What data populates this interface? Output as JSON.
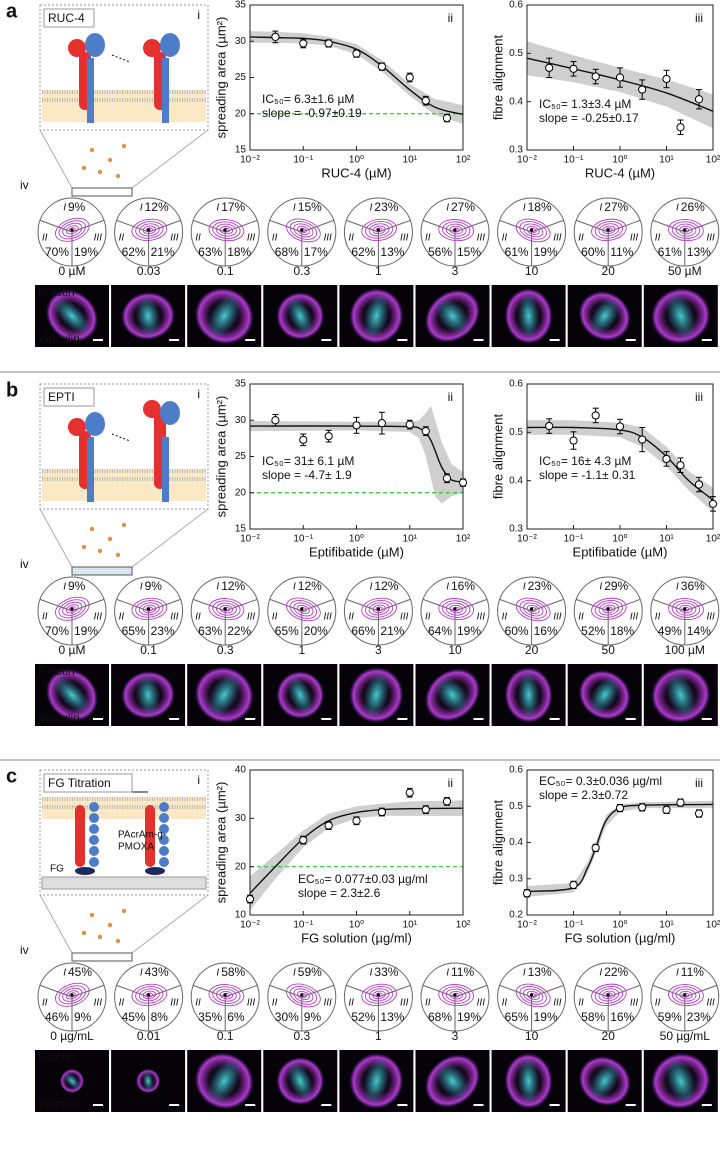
{
  "sector_labels": [
    "I",
    "II",
    "III"
  ],
  "panels": [
    {
      "letter": "a",
      "schematic": {
        "title": "RUC-4",
        "title_color": "#6cbf2a",
        "roman": "i"
      },
      "roses_label": "iv",
      "conditions": [
        "0 µM",
        "0.03",
        "0.1",
        "0.3",
        "1",
        "3",
        "10",
        "20",
        "50 µM"
      ],
      "roses": [
        [
          "9%",
          "70%",
          "19%"
        ],
        [
          "12%",
          "62%",
          "21%"
        ],
        [
          "17%",
          "63%",
          "18%"
        ],
        [
          "15%",
          "68%",
          "17%"
        ],
        [
          "23%",
          "62%",
          "13%"
        ],
        [
          "27%",
          "56%",
          "15%"
        ],
        [
          "18%",
          "61%",
          "19%"
        ],
        [
          "27%",
          "60%",
          "11%"
        ],
        [
          "26%",
          "61%",
          "13%"
        ]
      ],
      "image_labels": [
        "F-actin",
        "Vinculin"
      ]
    },
    {
      "letter": "b",
      "schematic": {
        "title": "EPTI",
        "title_color": "#a8461f",
        "roman": "i"
      },
      "roses_label": "iv",
      "conditions": [
        "0 µM",
        "0.1",
        "0.3",
        "1",
        "3",
        "10",
        "20",
        "50",
        "100 µM"
      ],
      "roses": [
        [
          "9%",
          "70%",
          "19%"
        ],
        [
          "9%",
          "65%",
          "23%"
        ],
        [
          "12%",
          "63%",
          "22%"
        ],
        [
          "12%",
          "65%",
          "20%"
        ],
        [
          "12%",
          "66%",
          "21%"
        ],
        [
          "16%",
          "64%",
          "19%"
        ],
        [
          "23%",
          "60%",
          "16%"
        ],
        [
          "29%",
          "52%",
          "18%"
        ],
        [
          "36%",
          "49%",
          "14%"
        ]
      ],
      "image_labels": [
        "F-actin",
        "Vinculin"
      ]
    },
    {
      "letter": "c",
      "schematic": {
        "title": "FG Titration",
        "title_color": "#22338a",
        "roman": "i",
        "texts": [
          "d",
          "PAcrAm-g-",
          "PMOXA",
          "FG"
        ]
      },
      "roses_label": "iv",
      "conditions": [
        "0 µg/mL",
        "0.01",
        "0.1",
        "0.3",
        "1",
        "3",
        "10",
        "20",
        "50 µg/mL"
      ],
      "roses": [
        [
          "45%",
          "46%",
          "9%"
        ],
        [
          "43%",
          "45%",
          "8%"
        ],
        [
          "58%",
          "35%",
          "6%"
        ],
        [
          "59%",
          "30%",
          "9%"
        ],
        [
          "33%",
          "52%",
          "13%"
        ],
        [
          "11%",
          "68%",
          "19%"
        ],
        [
          "13%",
          "65%",
          "19%"
        ],
        [
          "22%",
          "58%",
          "16%"
        ],
        [
          "11%",
          "59%",
          "23%"
        ]
      ],
      "image_labels": [
        "F-actin",
        "Vinculin"
      ]
    }
  ],
  "chart_data": [
    {
      "type": "scatter",
      "panel_label": "ii",
      "xlabel": "RUC-4 (µM)",
      "ylabel": "spreading area (µm²)",
      "xscale": "log",
      "xlim": [
        0.01,
        100
      ],
      "xticks": [
        {
          "value": 0.01,
          "label": "10⁻²"
        },
        {
          "value": 0.1,
          "label": "10⁻¹"
        },
        {
          "value": 1,
          "label": "10⁰"
        },
        {
          "value": 10,
          "label": "10¹"
        },
        {
          "value": 100,
          "label": "10²"
        }
      ],
      "ylim": [
        15,
        35
      ],
      "yticks": [
        15,
        20,
        25,
        30,
        35
      ],
      "color": "#000000",
      "x": [
        0.03,
        0.1,
        0.3,
        1,
        3,
        10,
        20,
        50
      ],
      "values": [
        30.6,
        29.7,
        29.7,
        28.3,
        26.5,
        25.0,
        21.8,
        19.4
      ],
      "errors": [
        0.8,
        0.6,
        0.5,
        0.5,
        0.5,
        0.6,
        0.6,
        0.5
      ],
      "fit": {
        "x": [
          0.01,
          0.03,
          0.1,
          0.3,
          1,
          3,
          10,
          30,
          100
        ],
        "y": [
          30.6,
          30.5,
          30.4,
          30.0,
          28.9,
          26.6,
          23.3,
          20.9,
          19.9
        ],
        "lower": [
          29.8,
          29.8,
          29.7,
          29.4,
          28.2,
          25.8,
          22.5,
          19.8,
          18.6
        ],
        "upper": [
          31.4,
          31.3,
          31.1,
          30.6,
          29.6,
          27.4,
          24.1,
          22.0,
          21.2
        ]
      },
      "hline": 20,
      "hline_color": "#2fc42f",
      "annotations": [
        "IC₅₀= 6.3±1.6 µM",
        "slope = -0.97±0.19"
      ]
    },
    {
      "type": "scatter",
      "panel_label": "iii",
      "xlabel": "RUC-4 (µM)",
      "ylabel": "fibre alignment",
      "xscale": "log",
      "xlim": [
        0.01,
        100
      ],
      "xticks": [
        {
          "value": 0.01,
          "label": "10⁻²"
        },
        {
          "value": 0.1,
          "label": "10⁻¹"
        },
        {
          "value": 1,
          "label": "10⁰"
        },
        {
          "value": 10,
          "label": "10¹"
        },
        {
          "value": 100,
          "label": "10²"
        }
      ],
      "ylim": [
        0.3,
        0.6
      ],
      "yticks": [
        0.3,
        0.4,
        0.5,
        0.6
      ],
      "color": "#000000",
      "x": [
        0.03,
        0.1,
        0.3,
        1,
        3,
        10,
        20,
        50
      ],
      "values": [
        0.47,
        0.468,
        0.452,
        0.45,
        0.425,
        0.447,
        0.347,
        0.405
      ],
      "errors": [
        0.02,
        0.015,
        0.015,
        0.02,
        0.02,
        0.018,
        0.015,
        0.02
      ],
      "fit": {
        "x": [
          0.01,
          0.1,
          1,
          10,
          100
        ],
        "y": [
          0.49,
          0.468,
          0.445,
          0.418,
          0.38
        ],
        "lower": [
          0.455,
          0.44,
          0.42,
          0.39,
          0.345
        ],
        "upper": [
          0.525,
          0.496,
          0.47,
          0.446,
          0.415
        ]
      },
      "annotations": [
        "IC₅₀= 1.3±3.4 µM",
        "slope = -0.25±0.17"
      ]
    },
    {
      "type": "scatter",
      "panel_label": "ii",
      "xlabel": "Eptifibatide (µM)",
      "ylabel": "spreading area (µm²)",
      "xscale": "log",
      "xlim": [
        0.01,
        100
      ],
      "xticks": [
        {
          "value": 0.01,
          "label": "10⁻²"
        },
        {
          "value": 0.1,
          "label": "10⁻¹"
        },
        {
          "value": 1,
          "label": "10⁰"
        },
        {
          "value": 10,
          "label": "10¹"
        },
        {
          "value": 100,
          "label": "10²"
        }
      ],
      "ylim": [
        15,
        35
      ],
      "yticks": [
        15,
        20,
        25,
        30,
        35
      ],
      "color": "#000000",
      "x": [
        0.03,
        0.1,
        0.3,
        1,
        3,
        10,
        20,
        50,
        100
      ],
      "values": [
        30.0,
        27.3,
        27.8,
        29.3,
        29.6,
        29.4,
        28.5,
        22.0,
        21.4
      ],
      "errors": [
        0.8,
        0.8,
        0.8,
        1.1,
        1.5,
        0.6,
        0.6,
        0.6,
        0.5
      ],
      "fit": {
        "x": [
          0.01,
          1,
          10,
          15,
          20,
          25,
          30,
          40,
          60,
          100
        ],
        "y": [
          29.2,
          29.2,
          29.1,
          28.9,
          28.3,
          27.2,
          25.8,
          23.5,
          21.8,
          21.5
        ],
        "lower": [
          28.5,
          28.6,
          28.4,
          27.5,
          25.0,
          22.0,
          19.5,
          18.5,
          19.5,
          20.0
        ],
        "upper": [
          29.9,
          29.8,
          29.8,
          30.0,
          31.0,
          32.0,
          30.0,
          27.0,
          24.0,
          22.8
        ]
      },
      "hline": 20,
      "hline_color": "#2fc42f",
      "annotations": [
        "IC₅₀= 31± 6.1 µM",
        "slope = -4.7± 1.9"
      ]
    },
    {
      "type": "scatter",
      "panel_label": "iii",
      "xlabel": "Eptifibatide (µM)",
      "ylabel": "fibre alignment",
      "xscale": "log",
      "xlim": [
        0.01,
        100
      ],
      "xticks": [
        {
          "value": 0.01,
          "label": "10⁻²"
        },
        {
          "value": 0.1,
          "label": "10⁻¹"
        },
        {
          "value": 1,
          "label": "10⁰"
        },
        {
          "value": 10,
          "label": "10¹"
        },
        {
          "value": 100,
          "label": "10²"
        }
      ],
      "ylim": [
        0.3,
        0.6
      ],
      "yticks": [
        0.3,
        0.4,
        0.5,
        0.6
      ],
      "color": "#000000",
      "x": [
        0.03,
        0.1,
        0.3,
        1,
        3,
        10,
        20,
        50,
        100
      ],
      "values": [
        0.513,
        0.483,
        0.535,
        0.512,
        0.485,
        0.445,
        0.432,
        0.392,
        0.352
      ],
      "errors": [
        0.015,
        0.018,
        0.015,
        0.015,
        0.025,
        0.015,
        0.015,
        0.015,
        0.015
      ],
      "fit": {
        "x": [
          0.01,
          0.1,
          1,
          3,
          10,
          30,
          100
        ],
        "y": [
          0.51,
          0.51,
          0.505,
          0.49,
          0.45,
          0.4,
          0.36
        ],
        "lower": [
          0.495,
          0.495,
          0.49,
          0.47,
          0.43,
          0.38,
          0.335
        ],
        "upper": [
          0.525,
          0.525,
          0.52,
          0.51,
          0.47,
          0.42,
          0.385
        ]
      },
      "annotations": [
        "IC₅₀= 16± 4.3 µM",
        "slope = -1.1± 0.31"
      ]
    },
    {
      "type": "scatter",
      "panel_label": "ii",
      "xlabel": "FG solution (µg/ml)",
      "ylabel": "spreading area (µm²)",
      "xscale": "log",
      "xlim": [
        0.01,
        100
      ],
      "xticks": [
        {
          "value": 0.01,
          "label": "10⁻²"
        },
        {
          "value": 0.1,
          "label": "10⁻¹"
        },
        {
          "value": 1,
          "label": "10⁰"
        },
        {
          "value": 10,
          "label": "10¹"
        },
        {
          "value": 100,
          "label": "10²"
        }
      ],
      "ylim": [
        10,
        40
      ],
      "yticks": [
        10,
        20,
        30,
        40
      ],
      "color": "#000000",
      "x": [
        0.01,
        0.1,
        0.3,
        1,
        3,
        10,
        20,
        50
      ],
      "values": [
        13.3,
        25.5,
        28.5,
        29.5,
        31.3,
        35.3,
        31.8,
        33.5
      ],
      "errors": [
        0.8,
        0.8,
        0.8,
        0.8,
        0.8,
        0.9,
        0.8,
        0.8
      ],
      "fit": {
        "x": [
          0.01,
          0.03,
          0.1,
          0.3,
          1,
          3,
          10,
          100
        ],
        "y": [
          14.5,
          20.0,
          25.8,
          29.5,
          31.2,
          31.8,
          32.0,
          32.1
        ],
        "lower": [
          11.0,
          17.5,
          24.0,
          28.0,
          30.0,
          30.5,
          30.5,
          30.5
        ],
        "upper": [
          18.0,
          22.5,
          27.5,
          31.0,
          32.5,
          33.0,
          33.5,
          33.7
        ]
      },
      "hline": 20,
      "hline_color": "#2fc42f",
      "annotations": [
        "EC₅₀= 0.077±0.03 µg/ml",
        "slope = 2.3±2.6"
      ]
    },
    {
      "type": "scatter",
      "panel_label": "iii",
      "xlabel": "FG solution (µg/ml)",
      "ylabel": "fibre alignment",
      "xscale": "log",
      "xlim": [
        0.01,
        100
      ],
      "xticks": [
        {
          "value": 0.01,
          "label": "10⁻²"
        },
        {
          "value": 0.1,
          "label": "10⁻¹"
        },
        {
          "value": 1,
          "label": "10⁰"
        },
        {
          "value": 10,
          "label": "10¹"
        },
        {
          "value": 100,
          "label": "10²"
        }
      ],
      "ylim": [
        0.2,
        0.6
      ],
      "yticks": [
        0.2,
        0.3,
        0.4,
        0.5,
        0.6
      ],
      "color": "#000000",
      "x": [
        0.01,
        0.1,
        0.3,
        1,
        3,
        10,
        20,
        50
      ],
      "values": [
        0.26,
        0.283,
        0.385,
        0.495,
        0.497,
        0.49,
        0.51,
        0.48
      ],
      "errors": [
        0.01,
        0.01,
        0.01,
        0.01,
        0.01,
        0.01,
        0.01,
        0.01
      ],
      "fit": {
        "x": [
          0.01,
          0.1,
          0.2,
          0.3,
          0.5,
          1,
          3,
          100
        ],
        "y": [
          0.265,
          0.275,
          0.33,
          0.385,
          0.46,
          0.495,
          0.503,
          0.505
        ],
        "lower": [
          0.25,
          0.262,
          0.315,
          0.37,
          0.445,
          0.485,
          0.495,
          0.495
        ],
        "upper": [
          0.28,
          0.288,
          0.345,
          0.4,
          0.475,
          0.505,
          0.511,
          0.515
        ]
      },
      "annotations": [
        "EC₅₀= 0.3±0.036 µg/ml",
        "slope = 2.3±0.72"
      ]
    }
  ]
}
